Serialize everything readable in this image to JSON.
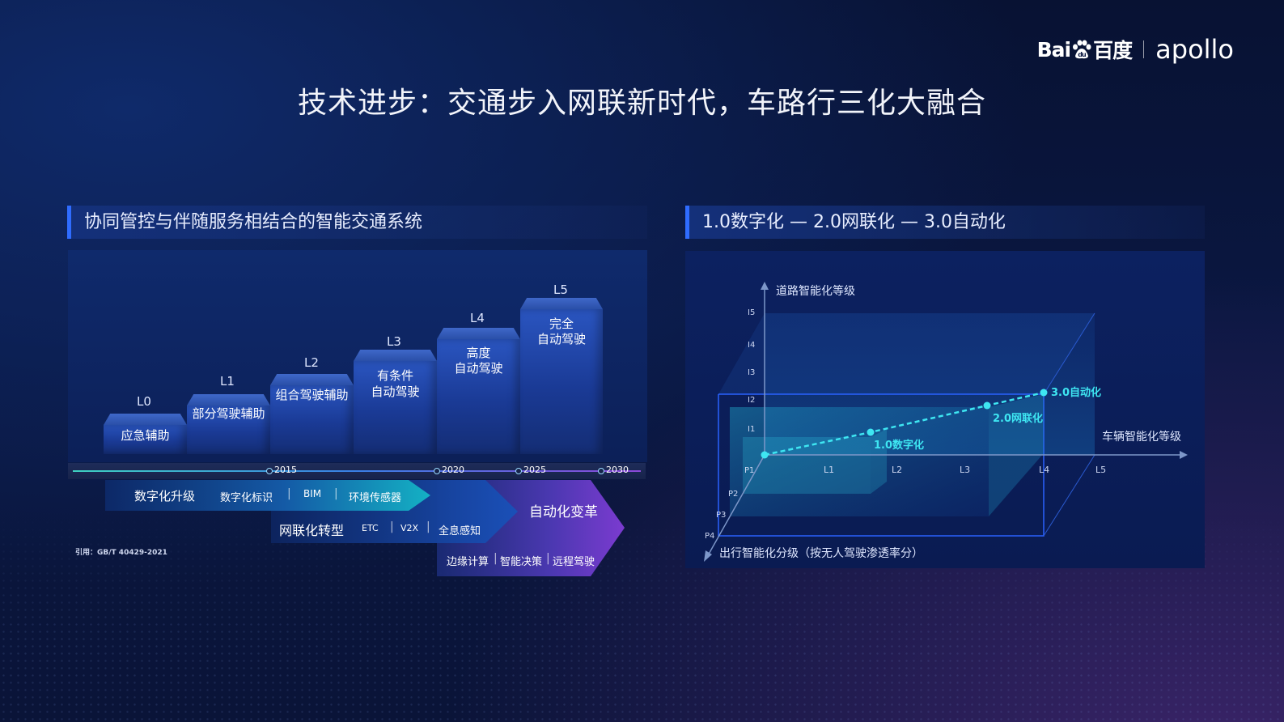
{
  "logo": {
    "brand": "Bai",
    "brand_cn": "百度",
    "product": "apollo"
  },
  "title": "技术进步：交通步入网联新时代，车路行三化大融合",
  "left": {
    "header": "协同管控与伴随服务相结合的智能交通系统",
    "levels": [
      {
        "level": "L0",
        "name": "应急辅助"
      },
      {
        "level": "L1",
        "name": "部分驾驶辅助"
      },
      {
        "level": "L2",
        "name": "组合驾驶辅助"
      },
      {
        "level": "L3",
        "name_l1": "有条件",
        "name_l2": "自动驾驶"
      },
      {
        "level": "L4",
        "name_l1": "高度",
        "name_l2": "自动驾驶"
      },
      {
        "level": "L5",
        "name_l1": "完全",
        "name_l2": "自动驾驶"
      }
    ],
    "timeline": [
      "2015",
      "2020",
      "2025",
      "2030"
    ],
    "band1": {
      "title": "数字化升级",
      "items": [
        "数字化标识",
        "BIM",
        "环境传感器"
      ]
    },
    "band2": {
      "title": "网联化转型",
      "items": [
        "ETC",
        "V2X",
        "全息感知"
      ]
    },
    "band3": {
      "title": "自动化变革",
      "items": [
        "边缘计算",
        "智能决策",
        "远程驾驶"
      ]
    },
    "citation": "引用：GB/T 40429-2021"
  },
  "right": {
    "header": "1.0数字化 — 2.0网联化 — 3.0自动化",
    "y_axis_label": "道路智能化等级",
    "x_axis_label": "车辆智能化等级",
    "z_axis_label": "出行智能化分级（按无人驾驶渗透率分）",
    "y_ticks": [
      "I5",
      "I4",
      "I3",
      "I2",
      "I1"
    ],
    "x_ticks": [
      "L1",
      "L2",
      "L3",
      "L4",
      "L5"
    ],
    "z_ticks": [
      "P1",
      "P2",
      "P3",
      "P4"
    ],
    "points": [
      "1.0数字化",
      "2.0网联化",
      "3.0自动化"
    ]
  },
  "colors": {
    "accent_blue": "#2f6cff",
    "cyan": "#3ee6f2",
    "purple": "#7b3bd0"
  }
}
